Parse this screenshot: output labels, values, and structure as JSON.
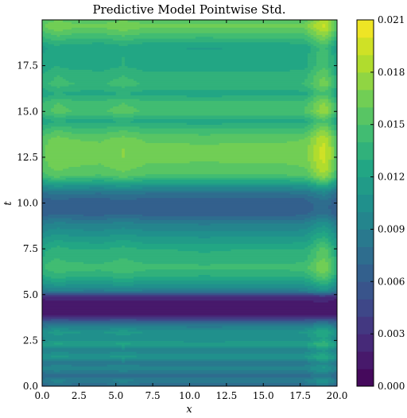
{
  "chart_data": {
    "type": "heatmap",
    "title": "Predictive Model Pointwise Std.",
    "xlabel": "x",
    "ylabel": "t",
    "xlim": [
      0,
      20
    ],
    "ylim": [
      0,
      20
    ],
    "x_ticks": [
      0,
      2.5,
      5,
      7.5,
      10,
      12.5,
      15,
      17.5,
      20
    ],
    "x_tick_labels": [
      "0.0",
      "2.5",
      "5.0",
      "7.5",
      "10.0",
      "12.5",
      "15.0",
      "17.5",
      "20.0"
    ],
    "y_ticks": [
      0,
      2.5,
      5,
      7.5,
      10,
      12.5,
      15,
      17.5
    ],
    "y_tick_labels": [
      "0.0",
      "2.5",
      "5.0",
      "7.5",
      "10.0",
      "12.5",
      "15.0",
      "17.5"
    ],
    "colorbar": {
      "colormap": "viridis",
      "range": [
        0,
        0.021
      ],
      "levels": 21,
      "ticks": [
        0,
        0.003,
        0.006,
        0.009,
        0.012,
        0.015,
        0.018,
        0.021
      ],
      "tick_labels": [
        "0.000",
        "0.003",
        "0.006",
        "0.009",
        "0.012",
        "0.015",
        "0.018",
        "0.021"
      ]
    },
    "t_profile": {
      "t": [
        0.0,
        0.3,
        0.6,
        1.0,
        1.3,
        1.6,
        2.0,
        2.3,
        2.6,
        3.0,
        3.3,
        3.6,
        3.8,
        4.0,
        4.5,
        4.9,
        5.2,
        5.6,
        6.0,
        6.5,
        7.0,
        7.5,
        8.0,
        8.5,
        9.0,
        9.4,
        9.8,
        10.2,
        10.6,
        11.0,
        11.5,
        12.0,
        12.5,
        13.0,
        13.5,
        14.0,
        14.5,
        15.0,
        15.5,
        16.0,
        16.5,
        17.0,
        17.5,
        18.0,
        18.5,
        19.0,
        19.4,
        19.7,
        20.0
      ],
      "std": [
        0.007,
        0.0095,
        0.0075,
        0.01,
        0.0085,
        0.0115,
        0.0095,
        0.0125,
        0.0105,
        0.0115,
        0.009,
        0.006,
        0.0025,
        0.0015,
        0.0015,
        0.0025,
        0.009,
        0.0115,
        0.0135,
        0.015,
        0.014,
        0.0135,
        0.012,
        0.0105,
        0.009,
        0.007,
        0.0065,
        0.007,
        0.0085,
        0.0115,
        0.0155,
        0.0165,
        0.017,
        0.017,
        0.0165,
        0.015,
        0.013,
        0.0155,
        0.015,
        0.013,
        0.0145,
        0.014,
        0.013,
        0.013,
        0.0125,
        0.0145,
        0.016,
        0.017,
        0.016
      ]
    },
    "x_profile": {
      "x": [
        0.0,
        0.5,
        1.0,
        2.0,
        4.0,
        5.5,
        7.0,
        9.0,
        11.0,
        13.0,
        15.0,
        16.5,
        17.8,
        18.3,
        18.8,
        19.2,
        19.6,
        20.0
      ],
      "factor": [
        0.93,
        0.97,
        1.0,
        0.97,
        0.96,
        1.0,
        0.96,
        0.96,
        0.95,
        0.96,
        0.96,
        0.96,
        0.97,
        1.04,
        1.12,
        1.14,
        1.04,
        0.9
      ]
    }
  }
}
